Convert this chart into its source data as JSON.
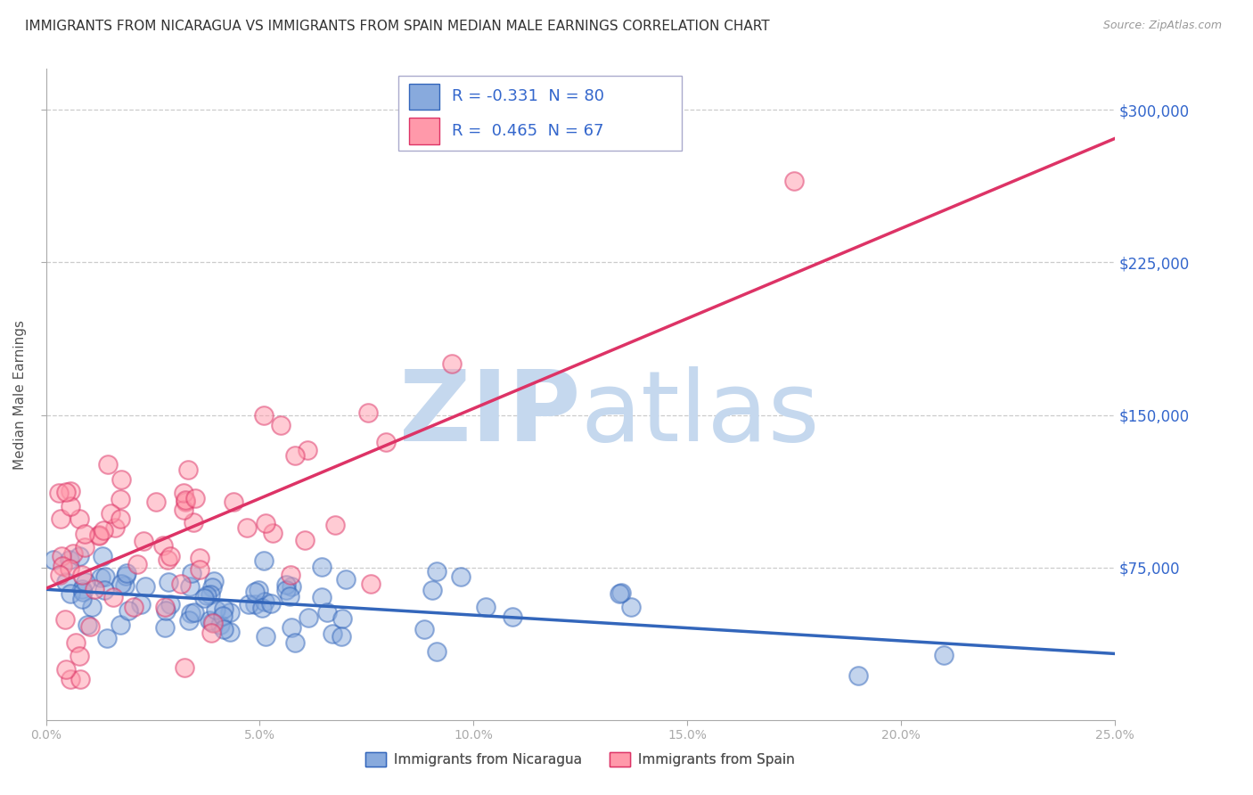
{
  "title": "IMMIGRANTS FROM NICARAGUA VS IMMIGRANTS FROM SPAIN MEDIAN MALE EARNINGS CORRELATION CHART",
  "source": "Source: ZipAtlas.com",
  "ylabel": "Median Male Earnings",
  "y_tick_labels": [
    "$75,000",
    "$150,000",
    "$225,000",
    "$300,000"
  ],
  "y_tick_values": [
    75000,
    150000,
    225000,
    300000
  ],
  "x_tick_values": [
    0.0,
    0.05,
    0.1,
    0.15,
    0.2,
    0.25
  ],
  "x_tick_labels": [
    "0.0%",
    "5.0%",
    "10.0%",
    "15.0%",
    "20.0%",
    "25.0%"
  ],
  "xlim": [
    0.0,
    0.25
  ],
  "ylim": [
    0,
    320000
  ],
  "legend_label1": "Immigrants from Nicaragua",
  "legend_label2": "Immigrants from Spain",
  "color_nicaragua": "#88AADD",
  "color_spain": "#FF99AA",
  "color_trendline_nicaragua": "#3366BB",
  "color_trendline_spain": "#DD3366",
  "color_ytick_labels": "#3366CC",
  "color_text_blue": "#3366CC",
  "watermark_zip": "ZIP",
  "watermark_atlas": "atlas",
  "watermark_color": "#C5D8EE",
  "background_color": "#FFFFFF",
  "R_nicaragua": -0.331,
  "N_nicaragua": 80,
  "R_spain": 0.465,
  "N_spain": 67,
  "seed": 12
}
